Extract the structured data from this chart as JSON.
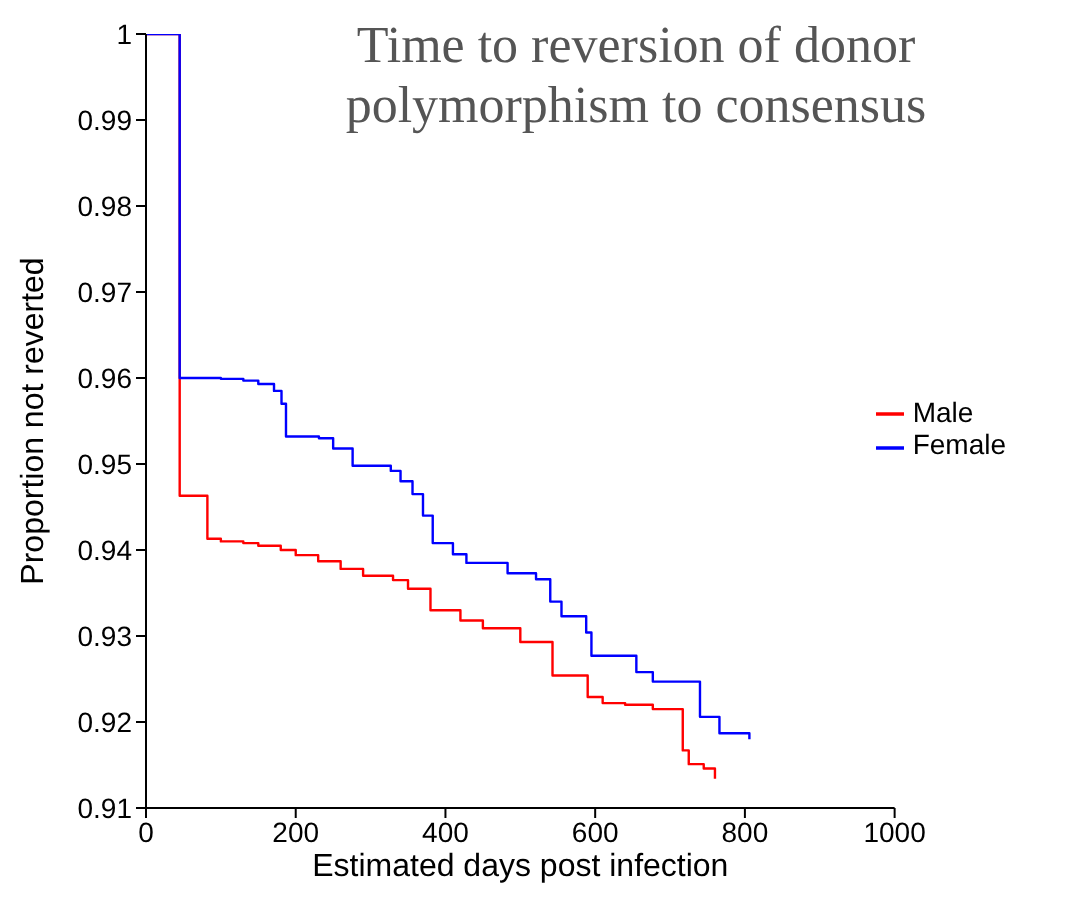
{
  "chart_data": {
    "type": "step",
    "title": "Time to reversion of donor polymorphism to consensus",
    "xlabel": "Estimated days post infection",
    "ylabel": "Proportion not reverted",
    "xlim": [
      0,
      1000
    ],
    "xticks": [
      0,
      200,
      400,
      600,
      800,
      1000
    ],
    "ylim": [
      0.91,
      1
    ],
    "yticks": [
      0.91,
      0.92,
      0.93,
      0.94,
      0.95,
      0.96,
      0.97,
      0.98,
      0.99,
      1
    ],
    "grid": false,
    "legend": "right",
    "marker": "none",
    "line_style": "solid",
    "series": [
      {
        "name": "Male",
        "color": "#ff0000",
        "x": [
          0,
          45,
          82,
          100,
          130,
          150,
          180,
          200,
          230,
          260,
          290,
          330,
          350,
          380,
          420,
          450,
          500,
          543,
          590,
          610,
          640,
          677,
          717,
          725,
          745,
          760
        ],
        "values": [
          1,
          0.9463,
          0.9413,
          0.941,
          0.9408,
          0.9405,
          0.94,
          0.9394,
          0.9387,
          0.9378,
          0.937,
          0.9365,
          0.9355,
          0.933,
          0.9318,
          0.9309,
          0.9293,
          0.9254,
          0.9229,
          0.9222,
          0.922,
          0.9215,
          0.9167,
          0.9151,
          0.9146,
          0.9134
        ]
      },
      {
        "name": "Female",
        "color": "#0000ff",
        "x": [
          0,
          45,
          100,
          130,
          150,
          171,
          181,
          187,
          231,
          250,
          276,
          327,
          340,
          356,
          370,
          383,
          410,
          428,
          483,
          521,
          540,
          555,
          588,
          595,
          639,
          655,
          677,
          721,
          740,
          766,
          795,
          806
        ],
        "values": [
          1,
          0.96,
          0.9599,
          0.9597,
          0.9593,
          0.9585,
          0.957,
          0.9532,
          0.953,
          0.9518,
          0.9498,
          0.9492,
          0.948,
          0.9465,
          0.944,
          0.9408,
          0.9395,
          0.9385,
          0.9373,
          0.9366,
          0.934,
          0.9323,
          0.9304,
          0.9277,
          0.9277,
          0.9258,
          0.9247,
          0.9247,
          0.9206,
          0.9187,
          0.9187,
          0.918
        ]
      }
    ]
  }
}
